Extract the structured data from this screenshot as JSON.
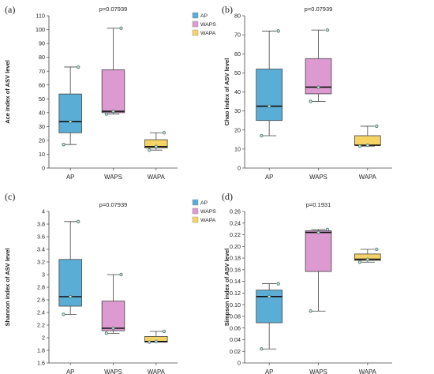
{
  "chart_data": [
    {
      "type": "box",
      "panel_label": "(a)",
      "title": "p=0.07939",
      "xlabel": "",
      "ylabel": "Ace index of ASV level",
      "categories": [
        "AP",
        "WAPS",
        "WAPA"
      ],
      "ylim": [
        0,
        110
      ],
      "yticks": [
        0,
        10,
        20,
        30,
        40,
        50,
        60,
        70,
        80,
        90,
        100,
        110
      ],
      "legend": [
        "AP",
        "WAPS",
        "WAPA"
      ],
      "legend_position": "top-right",
      "boxes": [
        {
          "name": "AP",
          "min": 17,
          "q1": 25.5,
          "median": 33.5,
          "q3": 53.5,
          "max": 73,
          "points": [
            17,
            33.5,
            73
          ]
        },
        {
          "name": "WAPS",
          "min": 39,
          "q1": 40,
          "median": 41,
          "q3": 71,
          "max": 101,
          "points": [
            39,
            41,
            101
          ]
        },
        {
          "name": "WAPA",
          "min": 13,
          "q1": 14.5,
          "median": 15.5,
          "q3": 20.5,
          "max": 25.5,
          "points": [
            13,
            15.5,
            25.5
          ]
        }
      ]
    },
    {
      "type": "box",
      "panel_label": "(b)",
      "title": "p=0.07939",
      "xlabel": "",
      "ylabel": "Chao index of ASV level",
      "categories": [
        "AP",
        "WAPS",
        "WAPA"
      ],
      "ylim": [
        0,
        80
      ],
      "yticks": [
        0,
        10,
        20,
        30,
        40,
        50,
        60,
        70,
        80
      ],
      "legend": [
        "AP",
        "WAPS",
        "WAPA"
      ],
      "legend_position": "top-right",
      "boxes": [
        {
          "name": "AP",
          "min": 17,
          "q1": 25,
          "median": 32.5,
          "q3": 52,
          "max": 72,
          "points": [
            17,
            32.5,
            72
          ]
        },
        {
          "name": "WAPS",
          "min": 35,
          "q1": 39,
          "median": 42.5,
          "q3": 57.5,
          "max": 72.5,
          "points": [
            35,
            42.5,
            72.5
          ]
        },
        {
          "name": "WAPA",
          "min": 11.5,
          "q1": 12,
          "median": 12,
          "q3": 17,
          "max": 22,
          "points": [
            11.5,
            12,
            22
          ]
        }
      ]
    },
    {
      "type": "box",
      "panel_label": "(c)",
      "title": "p=0.07939",
      "xlabel": "",
      "ylabel": "Shannon index of ASV level",
      "categories": [
        "AP",
        "WAPS",
        "WAPA"
      ],
      "ylim": [
        1.6,
        4.0
      ],
      "yticks": [
        1.6,
        1.8,
        2,
        2.2,
        2.4,
        2.6,
        2.8,
        3,
        3.2,
        3.4,
        3.6,
        3.8,
        4
      ],
      "yticklabels": [
        "1.6",
        "1.8",
        "2",
        "2.2",
        "2.4",
        "2.6",
        "2.8",
        "3",
        "3.2",
        "3.4",
        "3.6",
        "3.8",
        "4"
      ],
      "legend": [
        "AP",
        "WAPS",
        "WAPA"
      ],
      "legend_position": "top-right",
      "boxes": [
        {
          "name": "AP",
          "min": 2.37,
          "q1": 2.5,
          "median": 2.65,
          "q3": 3.24,
          "max": 3.84,
          "points": [
            2.37,
            2.65,
            3.84
          ]
        },
        {
          "name": "WAPS",
          "min": 2.07,
          "q1": 2.11,
          "median": 2.15,
          "q3": 2.58,
          "max": 3.0,
          "points": [
            2.07,
            2.15,
            3.0
          ]
        },
        {
          "name": "WAPA",
          "min": 1.93,
          "q1": 1.93,
          "median": 1.94,
          "q3": 2.02,
          "max": 2.1,
          "points": [
            1.93,
            1.94,
            2.1
          ]
        }
      ]
    },
    {
      "type": "box",
      "panel_label": "(d)",
      "title": "p=0.1931",
      "xlabel": "",
      "ylabel": "Simpson index of ASV level",
      "categories": [
        "AP",
        "WAPS",
        "WAPA"
      ],
      "ylim": [
        0,
        0.26
      ],
      "yticks": [
        0,
        0.02,
        0.04,
        0.06,
        0.08,
        0.1,
        0.12,
        0.14,
        0.16,
        0.18,
        0.2,
        0.22,
        0.24,
        0.26
      ],
      "yticklabels": [
        "0",
        "0.02",
        "0.04",
        "0.06",
        "0.08",
        "0.10",
        "0.12",
        "0.14",
        "0.16",
        "0.18",
        "0.20",
        "0.22",
        "0.24",
        "0.26"
      ],
      "legend": [
        "AP",
        "WAPS",
        "WAPA"
      ],
      "legend_position": "top-right",
      "boxes": [
        {
          "name": "AP",
          "min": 0.024,
          "q1": 0.069,
          "median": 0.114,
          "q3": 0.125,
          "max": 0.136,
          "points": [
            0.024,
            0.114,
            0.136
          ]
        },
        {
          "name": "WAPS",
          "min": 0.089,
          "q1": 0.157,
          "median": 0.224,
          "q3": 0.227,
          "max": 0.229,
          "points": [
            0.089,
            0.224,
            0.229
          ]
        },
        {
          "name": "WAPA",
          "min": 0.173,
          "q1": 0.176,
          "median": 0.178,
          "q3": 0.187,
          "max": 0.195,
          "points": [
            0.173,
            0.178,
            0.195
          ]
        }
      ]
    }
  ],
  "colors": {
    "AP": "#5aaed6",
    "WAPS": "#dc9ad0",
    "WAPA": "#f6d366",
    "point_edge": "#4a7a78",
    "point_fill": "#d8e4d4",
    "axis": "#444444",
    "text": "#222222"
  }
}
